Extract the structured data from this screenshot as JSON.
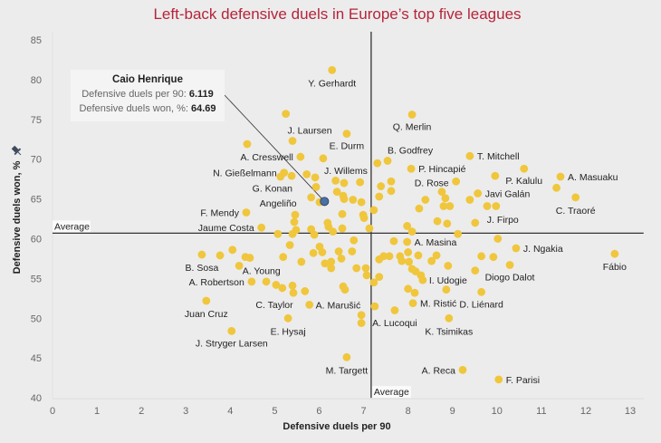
{
  "title": "Left-back defensive duels in Europe’s top five leagues",
  "tooltip": {
    "name": "Caio Henrique",
    "x_label": "Defensive duels per 90:",
    "x_value": "6.119",
    "y_label": "Defensive duels won, %:",
    "y_value": "64.69"
  },
  "colors": {
    "title": "#b5243a",
    "point": "#f0c63c",
    "highlight": "#4a6fa5",
    "background": "#ececec"
  },
  "chart_data": {
    "type": "scatter",
    "title": "Left-back defensive duels in Europe’s top five leagues",
    "xlabel": "Defensive duels per 90",
    "ylabel": "Defensive duels won, %",
    "ylabel_icon": "pin-icon",
    "xlim": [
      0,
      13.3
    ],
    "ylim": [
      40,
      85
    ],
    "x_ticks": [
      "0",
      "1",
      "2",
      "3",
      "4",
      "5",
      "6",
      "7",
      "8",
      "9",
      "10",
      "11",
      "12",
      "13"
    ],
    "y_ticks": [
      "40",
      "45",
      "50",
      "55",
      "60",
      "65",
      "70",
      "75",
      "80",
      "85"
    ],
    "grid": false,
    "reference_lines": {
      "x_average": 7.17,
      "y_average": 60.7,
      "label": "Average"
    },
    "highlight": {
      "label": "Caio Henrique",
      "x": 6.119,
      "y": 64.69
    },
    "points": [
      {
        "x": 6.29,
        "y": 81.2,
        "label": "Y. Gerhardt"
      },
      {
        "x": 8.09,
        "y": 75.6,
        "label": "Q. Merlin"
      },
      {
        "x": 5.4,
        "y": 72.3,
        "label": "J. Laursen"
      },
      {
        "x": 6.62,
        "y": 73.2,
        "label": "E. Durm"
      },
      {
        "x": 5.58,
        "y": 70.3,
        "label": "A. Cresswell"
      },
      {
        "x": 5.21,
        "y": 68.3,
        "label": "N. Gießelmann"
      },
      {
        "x": 5.93,
        "y": 66.5,
        "label": "G. Konan"
      },
      {
        "x": 5.82,
        "y": 65.2,
        "label": "Angeliño"
      },
      {
        "x": 6.56,
        "y": 67.0,
        "label": "J. Willems"
      },
      {
        "x": 4.36,
        "y": 63.3,
        "label": "F. Mendy"
      },
      {
        "x": 4.7,
        "y": 61.4,
        "label": "Jaume Costa"
      },
      {
        "x": 7.54,
        "y": 69.8,
        "label": "B. Godfrey"
      },
      {
        "x": 8.07,
        "y": 68.8,
        "label": "P. Hincapié"
      },
      {
        "x": 9.08,
        "y": 67.2,
        "label": "D. Rose"
      },
      {
        "x": 9.39,
        "y": 70.4,
        "label": "T. Mitchell"
      },
      {
        "x": 10.61,
        "y": 68.8,
        "label": "P. Kalulu"
      },
      {
        "x": 11.43,
        "y": 67.8,
        "label": "A. Masuaku"
      },
      {
        "x": 9.57,
        "y": 65.7,
        "label": "Javi Galán"
      },
      {
        "x": 11.77,
        "y": 65.2,
        "label": "C. Traoré"
      },
      {
        "x": 9.51,
        "y": 62.0,
        "label": "J. Firpo"
      },
      {
        "x": 7.98,
        "y": 59.6,
        "label": "A. Masina"
      },
      {
        "x": 10.43,
        "y": 58.8,
        "label": "J. Ngakia"
      },
      {
        "x": 12.65,
        "y": 58.1,
        "label": "Fábio"
      },
      {
        "x": 8.33,
        "y": 54.8,
        "label": "I. Udogie"
      },
      {
        "x": 10.29,
        "y": 56.7,
        "label": "Diogo Dalot"
      },
      {
        "x": 8.11,
        "y": 51.9,
        "label": "M. Ristić"
      },
      {
        "x": 9.65,
        "y": 53.3,
        "label": "D. Liénard"
      },
      {
        "x": 6.95,
        "y": 50.4,
        "label": "A. Lucoqui"
      },
      {
        "x": 8.92,
        "y": 50.0,
        "label": "K. Tsimikas"
      },
      {
        "x": 9.23,
        "y": 43.5,
        "label": "A. Reca"
      },
      {
        "x": 10.04,
        "y": 42.3,
        "label": "F. Parisi"
      },
      {
        "x": 6.62,
        "y": 45.1,
        "label": "M. Targett"
      },
      {
        "x": 5.78,
        "y": 51.7,
        "label": "A. Marušić"
      },
      {
        "x": 5.19,
        "y": 57.7,
        "label": "A. Young"
      },
      {
        "x": 3.36,
        "y": 58.0,
        "label": "B. Sosa"
      },
      {
        "x": 4.48,
        "y": 54.6,
        "label": "A. Robertson"
      },
      {
        "x": 5.42,
        "y": 53.2,
        "label": "C. Taylor"
      },
      {
        "x": 5.3,
        "y": 50.0,
        "label": "E. Hysaj"
      },
      {
        "x": 3.46,
        "y": 52.2,
        "label": "Juan Cruz"
      },
      {
        "x": 4.03,
        "y": 48.4,
        "label": "J. Stryger Larsen"
      },
      {
        "x": 5.25,
        "y": 75.7,
        "label": ""
      },
      {
        "x": 4.38,
        "y": 71.9,
        "label": ""
      },
      {
        "x": 6.09,
        "y": 70.1,
        "label": ""
      },
      {
        "x": 5.13,
        "y": 67.8,
        "label": ""
      },
      {
        "x": 5.38,
        "y": 67.9,
        "label": ""
      },
      {
        "x": 5.72,
        "y": 68.1,
        "label": ""
      },
      {
        "x": 5.91,
        "y": 67.7,
        "label": ""
      },
      {
        "x": 6.01,
        "y": 64.6,
        "label": ""
      },
      {
        "x": 5.46,
        "y": 63.0,
        "label": ""
      },
      {
        "x": 5.44,
        "y": 62.1,
        "label": ""
      },
      {
        "x": 6.37,
        "y": 67.3,
        "label": ""
      },
      {
        "x": 6.92,
        "y": 67.1,
        "label": ""
      },
      {
        "x": 6.4,
        "y": 65.9,
        "label": ""
      },
      {
        "x": 6.54,
        "y": 65.4,
        "label": ""
      },
      {
        "x": 6.56,
        "y": 65.0,
        "label": ""
      },
      {
        "x": 6.76,
        "y": 64.9,
        "label": ""
      },
      {
        "x": 6.95,
        "y": 64.6,
        "label": ""
      },
      {
        "x": 7.31,
        "y": 69.5,
        "label": ""
      },
      {
        "x": 7.62,
        "y": 67.2,
        "label": ""
      },
      {
        "x": 7.62,
        "y": 66.0,
        "label": ""
      },
      {
        "x": 7.39,
        "y": 66.6,
        "label": ""
      },
      {
        "x": 7.35,
        "y": 65.3,
        "label": ""
      },
      {
        "x": 8.39,
        "y": 64.9,
        "label": ""
      },
      {
        "x": 8.76,
        "y": 65.9,
        "label": ""
      },
      {
        "x": 8.84,
        "y": 65.1,
        "label": ""
      },
      {
        "x": 8.8,
        "y": 64.1,
        "label": ""
      },
      {
        "x": 8.94,
        "y": 64.1,
        "label": ""
      },
      {
        "x": 8.25,
        "y": 63.8,
        "label": ""
      },
      {
        "x": 7.23,
        "y": 63.6,
        "label": ""
      },
      {
        "x": 7.98,
        "y": 61.6,
        "label": ""
      },
      {
        "x": 8.66,
        "y": 62.2,
        "label": ""
      },
      {
        "x": 8.88,
        "y": 61.9,
        "label": ""
      },
      {
        "x": 9.96,
        "y": 67.9,
        "label": ""
      },
      {
        "x": 11.34,
        "y": 66.4,
        "label": ""
      },
      {
        "x": 9.39,
        "y": 64.9,
        "label": ""
      },
      {
        "x": 9.78,
        "y": 64.1,
        "label": ""
      },
      {
        "x": 9.98,
        "y": 64.1,
        "label": ""
      },
      {
        "x": 9.12,
        "y": 60.6,
        "label": ""
      },
      {
        "x": 6.99,
        "y": 63.0,
        "label": ""
      },
      {
        "x": 7.01,
        "y": 62.6,
        "label": ""
      },
      {
        "x": 6.52,
        "y": 63.1,
        "label": ""
      },
      {
        "x": 6.19,
        "y": 62.0,
        "label": ""
      },
      {
        "x": 6.21,
        "y": 61.5,
        "label": ""
      },
      {
        "x": 7.13,
        "y": 61.3,
        "label": ""
      },
      {
        "x": 5.07,
        "y": 60.6,
        "label": ""
      },
      {
        "x": 5.4,
        "y": 60.6,
        "label": ""
      },
      {
        "x": 5.48,
        "y": 61.1,
        "label": ""
      },
      {
        "x": 5.34,
        "y": 59.2,
        "label": ""
      },
      {
        "x": 5.82,
        "y": 61.2,
        "label": ""
      },
      {
        "x": 5.89,
        "y": 60.5,
        "label": ""
      },
      {
        "x": 10.02,
        "y": 60.0,
        "label": ""
      },
      {
        "x": 7.68,
        "y": 59.7,
        "label": ""
      },
      {
        "x": 6.78,
        "y": 59.8,
        "label": ""
      },
      {
        "x": 6.74,
        "y": 58.4,
        "label": ""
      },
      {
        "x": 6.44,
        "y": 58.4,
        "label": ""
      },
      {
        "x": 6.5,
        "y": 57.5,
        "label": ""
      },
      {
        "x": 6.27,
        "y": 57.1,
        "label": ""
      },
      {
        "x": 6.84,
        "y": 56.3,
        "label": ""
      },
      {
        "x": 7.05,
        "y": 56.3,
        "label": ""
      },
      {
        "x": 7.07,
        "y": 55.4,
        "label": ""
      },
      {
        "x": 7.35,
        "y": 57.4,
        "label": ""
      },
      {
        "x": 7.45,
        "y": 57.8,
        "label": ""
      },
      {
        "x": 7.58,
        "y": 57.8,
        "label": ""
      },
      {
        "x": 7.82,
        "y": 57.8,
        "label": ""
      },
      {
        "x": 7.86,
        "y": 57.2,
        "label": ""
      },
      {
        "x": 8.0,
        "y": 58.3,
        "label": ""
      },
      {
        "x": 8.02,
        "y": 57.1,
        "label": ""
      },
      {
        "x": 8.23,
        "y": 57.9,
        "label": ""
      },
      {
        "x": 8.53,
        "y": 57.2,
        "label": ""
      },
      {
        "x": 8.64,
        "y": 57.9,
        "label": ""
      },
      {
        "x": 8.9,
        "y": 56.6,
        "label": ""
      },
      {
        "x": 9.65,
        "y": 57.8,
        "label": ""
      },
      {
        "x": 9.92,
        "y": 57.7,
        "label": ""
      },
      {
        "x": 9.51,
        "y": 56.0,
        "label": ""
      },
      {
        "x": 8.09,
        "y": 56.2,
        "label": ""
      },
      {
        "x": 8.17,
        "y": 55.9,
        "label": ""
      },
      {
        "x": 8.29,
        "y": 55.4,
        "label": ""
      },
      {
        "x": 7.23,
        "y": 54.5,
        "label": ""
      },
      {
        "x": 7.35,
        "y": 55.2,
        "label": ""
      },
      {
        "x": 6.54,
        "y": 54.0,
        "label": ""
      },
      {
        "x": 6.58,
        "y": 53.6,
        "label": ""
      },
      {
        "x": 8.0,
        "y": 53.7,
        "label": ""
      },
      {
        "x": 8.15,
        "y": 53.2,
        "label": ""
      },
      {
        "x": 8.86,
        "y": 53.6,
        "label": ""
      },
      {
        "x": 7.25,
        "y": 51.5,
        "label": ""
      },
      {
        "x": 7.7,
        "y": 51.0,
        "label": ""
      },
      {
        "x": 6.95,
        "y": 49.4,
        "label": ""
      },
      {
        "x": 3.77,
        "y": 57.9,
        "label": ""
      },
      {
        "x": 4.05,
        "y": 58.6,
        "label": ""
      },
      {
        "x": 4.34,
        "y": 57.7,
        "label": ""
      },
      {
        "x": 4.44,
        "y": 57.6,
        "label": ""
      },
      {
        "x": 4.2,
        "y": 56.6,
        "label": ""
      },
      {
        "x": 5.6,
        "y": 57.1,
        "label": ""
      },
      {
        "x": 5.87,
        "y": 58.2,
        "label": ""
      },
      {
        "x": 6.01,
        "y": 59.0,
        "label": ""
      },
      {
        "x": 6.07,
        "y": 58.3,
        "label": ""
      },
      {
        "x": 6.13,
        "y": 56.9,
        "label": ""
      },
      {
        "x": 6.27,
        "y": 56.3,
        "label": ""
      },
      {
        "x": 4.81,
        "y": 54.6,
        "label": ""
      },
      {
        "x": 5.03,
        "y": 54.2,
        "label": ""
      },
      {
        "x": 5.17,
        "y": 53.8,
        "label": ""
      },
      {
        "x": 5.4,
        "y": 54.1,
        "label": ""
      },
      {
        "x": 5.68,
        "y": 53.4,
        "label": ""
      },
      {
        "x": 6.52,
        "y": 61.3,
        "label": ""
      },
      {
        "x": 6.31,
        "y": 60.9,
        "label": ""
      },
      {
        "x": 8.09,
        "y": 60.9,
        "label": ""
      }
    ]
  }
}
